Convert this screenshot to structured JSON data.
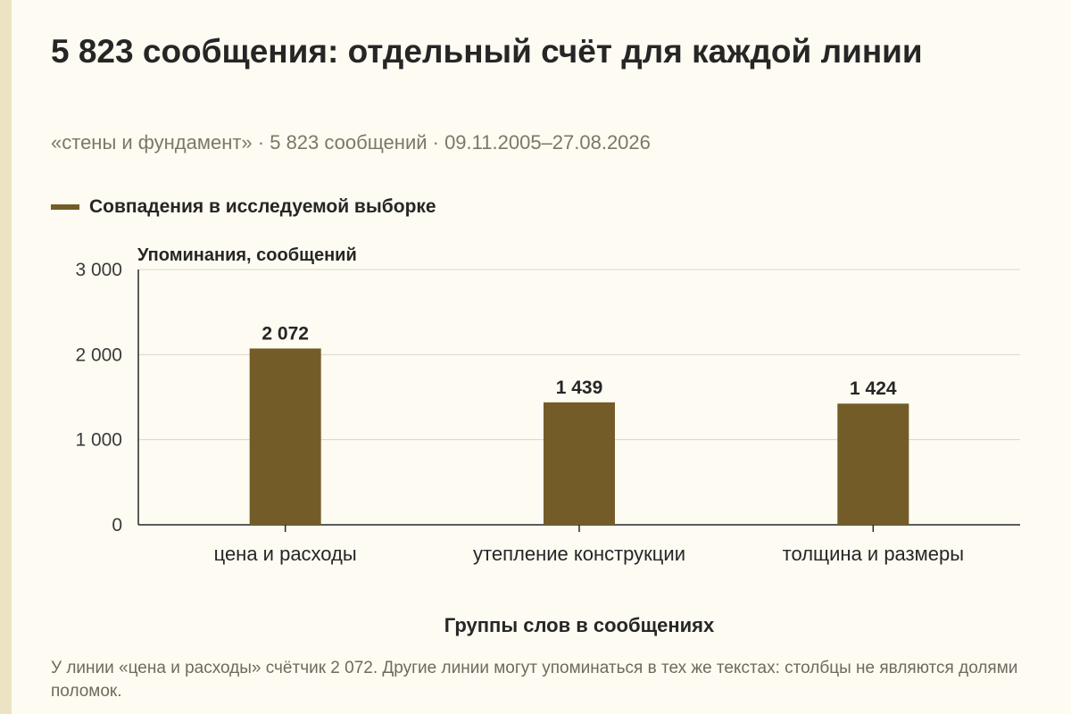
{
  "header": {
    "title": "5 823 сообщения: отдельный счёт для каждой линии",
    "subtitle": "«стены и фундамент» · 5 823 сообщений · 09.11.2005–27.08.2026"
  },
  "legend": {
    "label": "Совпадения в исследуемой выборке"
  },
  "colors": {
    "bar": "#735c28",
    "grid": "#d9d6cc",
    "axis": "#262626",
    "background": "#fdfbf2"
  },
  "chart_data": {
    "type": "bar",
    "ylabel": "Упоминания, сообщений",
    "xlabel": "Группы слов в сообщениях",
    "categories": [
      "цена и расходы",
      "утепление конструкции",
      "толщина и размеры"
    ],
    "series": [
      {
        "name": "Совпадения в исследуемой выборке",
        "values": [
          2072,
          1439,
          1424
        ],
        "value_labels": [
          "2 072",
          "1 439",
          "1 424"
        ]
      }
    ],
    "ylim": [
      0,
      3000
    ],
    "yticks": [
      0,
      1000,
      2000,
      3000
    ],
    "ytick_labels": [
      "0",
      "1 000",
      "2 000",
      "3 000"
    ],
    "grid": true,
    "legend_position": "top-left"
  },
  "footnote": {
    "text": "У линии «цена и расходы» счётчик 2 072. Другие линии могут упоминаться в тех же текстах: столбцы не являются долями поломок."
  }
}
